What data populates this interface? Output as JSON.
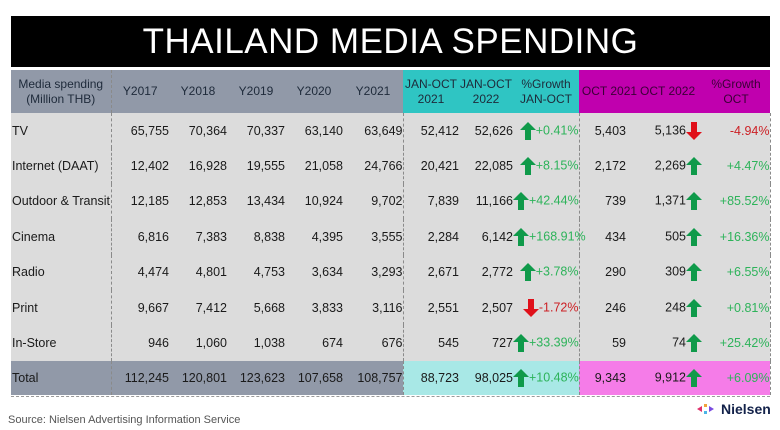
{
  "title": "THAILAND MEDIA SPENDING",
  "colors": {
    "title_bg": "#000000",
    "header_gray": "#9199a8",
    "header_teal": "#2fc5c3",
    "header_magenta": "#c000ae",
    "body_bg": "#dcdcdc",
    "total_teal": "#a8e8e6",
    "total_magenta": "#f57ce8",
    "positive": "#2db35a",
    "negative": "#cc1f24",
    "arrow_up": "#0f9a4a",
    "arrow_down": "#e0101a"
  },
  "headers": {
    "media": [
      "Media spending",
      "(Million THB)"
    ],
    "y2017": "Y2017",
    "y2018": "Y2018",
    "y2019": "Y2019",
    "y2020": "Y2020",
    "y2021": "Y2021",
    "janoct2021": [
      "JAN-OCT",
      "2021"
    ],
    "janoct2022": [
      "JAN-OCT",
      "2022"
    ],
    "growth_janoct": [
      "%Growth",
      "JAN-OCT"
    ],
    "oct2021": "OCT 2021",
    "oct2022": "OCT 2022",
    "growth_oct": [
      "%Growth",
      "OCT"
    ]
  },
  "rows": [
    {
      "label": "TV",
      "y2017": "65,755",
      "y2018": "70,364",
      "y2019": "70,337",
      "y2020": "63,140",
      "y2021": "63,649",
      "janoct2021": "52,412",
      "janoct2022": "52,626",
      "janoct_dir": "up",
      "janoct_growth": "+0.41%",
      "oct2021": "5,403",
      "oct2022": "5,136",
      "oct_dir": "down",
      "oct_growth": "-4.94%"
    },
    {
      "label": "Internet (DAAT)",
      "y2017": "12,402",
      "y2018": "16,928",
      "y2019": "19,555",
      "y2020": "21,058",
      "y2021": "24,766",
      "janoct2021": "20,421",
      "janoct2022": "22,085",
      "janoct_dir": "up",
      "janoct_growth": "+8.15%",
      "oct2021": "2,172",
      "oct2022": "2,269",
      "oct_dir": "up",
      "oct_growth": "+4.47%"
    },
    {
      "label": "Outdoor & Transit",
      "y2017": "12,185",
      "y2018": "12,853",
      "y2019": "13,434",
      "y2020": "10,924",
      "y2021": "9,702",
      "janoct2021": "7,839",
      "janoct2022": "11,166",
      "janoct_dir": "up",
      "janoct_growth": "+42.44%",
      "oct2021": "739",
      "oct2022": "1,371",
      "oct_dir": "up",
      "oct_growth": "+85.52%"
    },
    {
      "label": "Cinema",
      "y2017": "6,816",
      "y2018": "7,383",
      "y2019": "8,838",
      "y2020": "4,395",
      "y2021": "3,555",
      "janoct2021": "2,284",
      "janoct2022": "6,142",
      "janoct_dir": "up",
      "janoct_growth": "+168.91%",
      "oct2021": "434",
      "oct2022": "505",
      "oct_dir": "up",
      "oct_growth": "+16.36%"
    },
    {
      "label": "Radio",
      "y2017": "4,474",
      "y2018": "4,801",
      "y2019": "4,753",
      "y2020": "3,634",
      "y2021": "3,293",
      "janoct2021": "2,671",
      "janoct2022": "2,772",
      "janoct_dir": "up",
      "janoct_growth": "+3.78%",
      "oct2021": "290",
      "oct2022": "309",
      "oct_dir": "up",
      "oct_growth": "+6.55%"
    },
    {
      "label": "Print",
      "y2017": "9,667",
      "y2018": "7,412",
      "y2019": "5,668",
      "y2020": "3,833",
      "y2021": "3,116",
      "janoct2021": "2,551",
      "janoct2022": "2,507",
      "janoct_dir": "down",
      "janoct_growth": "-1.72%",
      "oct2021": "246",
      "oct2022": "248",
      "oct_dir": "up",
      "oct_growth": "+0.81%"
    },
    {
      "label": "In-Store",
      "y2017": "946",
      "y2018": "1,060",
      "y2019": "1,038",
      "y2020": "674",
      "y2021": "676",
      "janoct2021": "545",
      "janoct2022": "727",
      "janoct_dir": "up",
      "janoct_growth": "+33.39%",
      "oct2021": "59",
      "oct2022": "74",
      "oct_dir": "up",
      "oct_growth": "+25.42%"
    }
  ],
  "total": {
    "label": "Total",
    "y2017": "112,245",
    "y2018": "120,801",
    "y2019": "123,623",
    "y2020": "107,658",
    "y2021": "108,757",
    "janoct2021": "88,723",
    "janoct2022": "98,025",
    "janoct_dir": "up",
    "janoct_growth": "+10.48%",
    "oct2021": "9,343",
    "oct2022": "9,912",
    "oct_dir": "up",
    "oct_growth": "+6.09%"
  },
  "footer": {
    "source": "Source: Nielsen Advertising Information Service",
    "logo_text": "Nielsen"
  }
}
